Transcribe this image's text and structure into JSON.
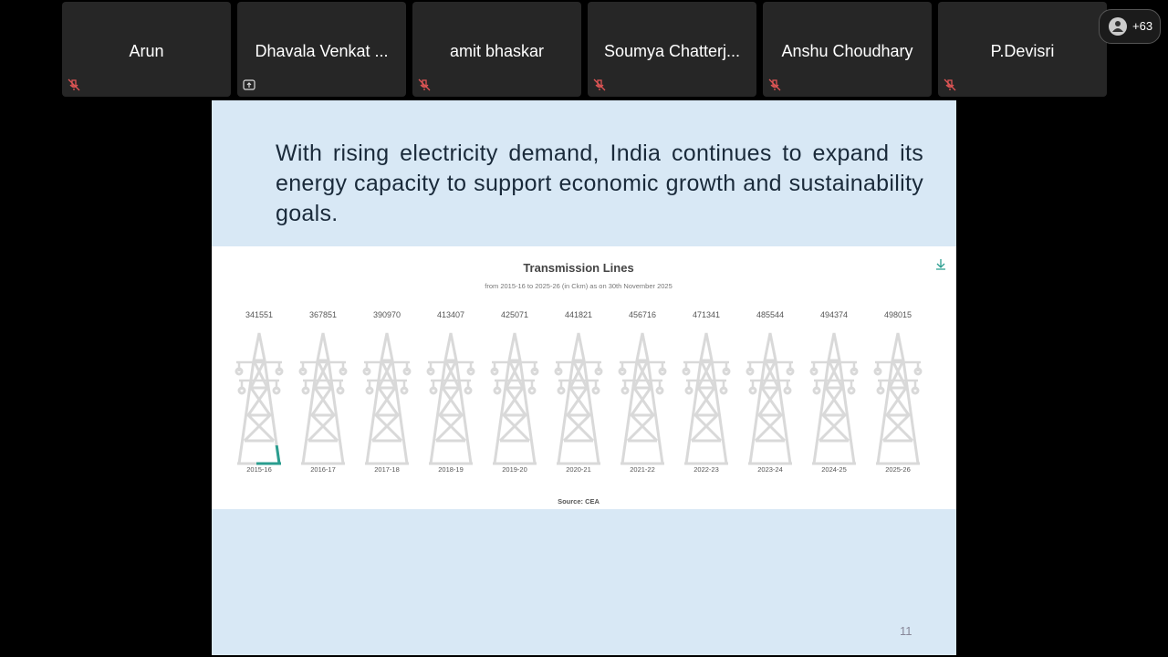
{
  "participants": [
    {
      "name": "Arun",
      "status": "muted"
    },
    {
      "name": "Dhavala Venkat ...",
      "status": "sharing"
    },
    {
      "name": "amit bhaskar",
      "status": "muted"
    },
    {
      "name": "Soumya Chatterj...",
      "status": "muted"
    },
    {
      "name": "Anshu Choudhary",
      "status": "muted"
    },
    {
      "name": "P.Devisri",
      "status": "muted"
    }
  ],
  "overflow_count": "+63",
  "slide": {
    "text": "With rising electricity demand, India continues to expand its energy capacity to support economic growth and sustainability goals.",
    "page_number": "11"
  },
  "chart_data": {
    "type": "pictorial",
    "title": "Transmission Lines",
    "subtitle": "from 2015-16 to 2025-26 (in Ckm) as on 30th November 2025",
    "source": "Source: CEA",
    "categories": [
      "2015-16",
      "2016-17",
      "2017-18",
      "2018-19",
      "2019-20",
      "2020-21",
      "2021-22",
      "2022-23",
      "2023-24",
      "2024-25",
      "2025-26"
    ],
    "values": [
      341551,
      367851,
      390970,
      413407,
      425071,
      441821,
      456716,
      471341,
      485544,
      494374,
      498015
    ],
    "color": "#2a9d8f",
    "empty_color": "#d9d9d9"
  }
}
